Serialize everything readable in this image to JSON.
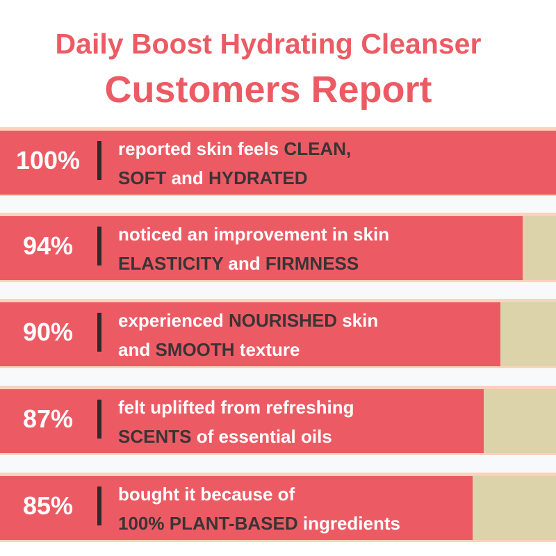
{
  "header": {
    "line1": "Daily Boost Hydrating Cleanser",
    "line2": "Customers Report"
  },
  "colors": {
    "accent": "#ec5b64",
    "remainder": "#dcd3aa",
    "border": "#f9d3bc",
    "dark_text": "#3a3335"
  },
  "chart_data": {
    "type": "bar",
    "orientation": "horizontal",
    "xlim": [
      0,
      100
    ],
    "values": [
      100,
      94,
      90,
      87,
      85
    ],
    "labels": [
      "100%",
      "94%",
      "90%",
      "87%",
      "85%"
    ],
    "rows": [
      {
        "lines": [
          [
            [
              "reported skin feels ",
              0
            ],
            [
              "CLEAN,",
              1
            ]
          ],
          [
            [
              "SOFT",
              1
            ],
            [
              " and ",
              0
            ],
            [
              "HYDRATED",
              1
            ]
          ]
        ]
      },
      {
        "lines": [
          [
            [
              "noticed an improvement in skin",
              0
            ]
          ],
          [
            [
              "ELASTICITY",
              1
            ],
            [
              " and ",
              0
            ],
            [
              "FIRMNESS",
              1
            ]
          ]
        ]
      },
      {
        "lines": [
          [
            [
              "experienced ",
              0
            ],
            [
              "NOURISHED",
              1
            ],
            [
              " skin",
              0
            ]
          ],
          [
            [
              "and ",
              0
            ],
            [
              "SMOOTH",
              1
            ],
            [
              " texture",
              0
            ]
          ]
        ]
      },
      {
        "lines": [
          [
            [
              "felt uplifted from refreshing",
              0
            ]
          ],
          [
            [
              "SCENTS",
              1
            ],
            [
              " of essential oils",
              0
            ]
          ]
        ]
      },
      {
        "lines": [
          [
            [
              "bought it because of",
              0
            ]
          ],
          [
            [
              "100% PLANT-BASED",
              1
            ],
            [
              " ingredients",
              0
            ]
          ]
        ]
      }
    ]
  }
}
